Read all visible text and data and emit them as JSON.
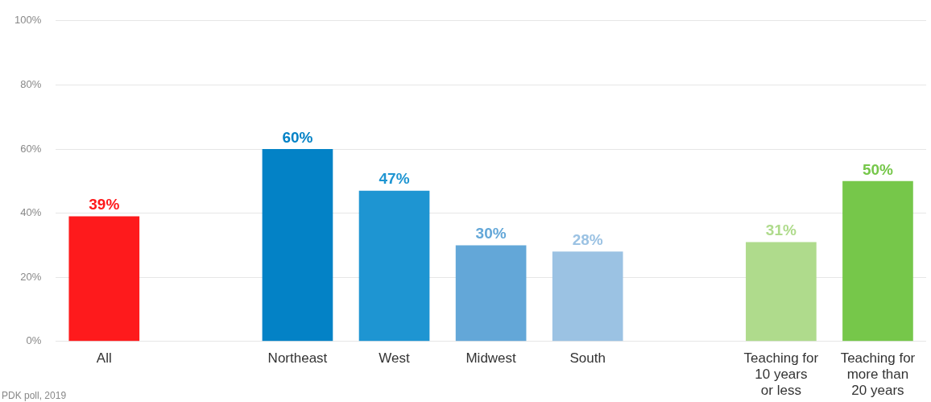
{
  "chart_data": {
    "type": "bar",
    "categories": [
      "All",
      null,
      "Northeast",
      "West",
      "Midwest",
      "South",
      null,
      "Teaching for\n10 years\nor less",
      "Teaching for\nmore than\n20 years"
    ],
    "values": [
      39,
      null,
      60,
      47,
      30,
      28,
      null,
      31,
      50
    ],
    "colors": [
      "#fe1a1c",
      "#ffffff",
      "#0382c6",
      "#1e95d2",
      "#63a7d8",
      "#9bc2e3",
      "#ffffff",
      "#afdb8c",
      "#76c74a"
    ],
    "value_labels": [
      "39%",
      null,
      "60%",
      "47%",
      "30%",
      "28%",
      null,
      "31%",
      "50%"
    ],
    "ylim": [
      0,
      100
    ],
    "yticks": [
      {
        "value": 0,
        "label": "0%"
      },
      {
        "value": 20,
        "label": "20%"
      },
      {
        "value": 40,
        "label": "40%"
      },
      {
        "value": 60,
        "label": "60%"
      },
      {
        "value": 80,
        "label": "80%"
      },
      {
        "value": 100,
        "label": "100%"
      }
    ],
    "grid": "y",
    "annotations": [
      "PDK poll, 2019"
    ]
  }
}
